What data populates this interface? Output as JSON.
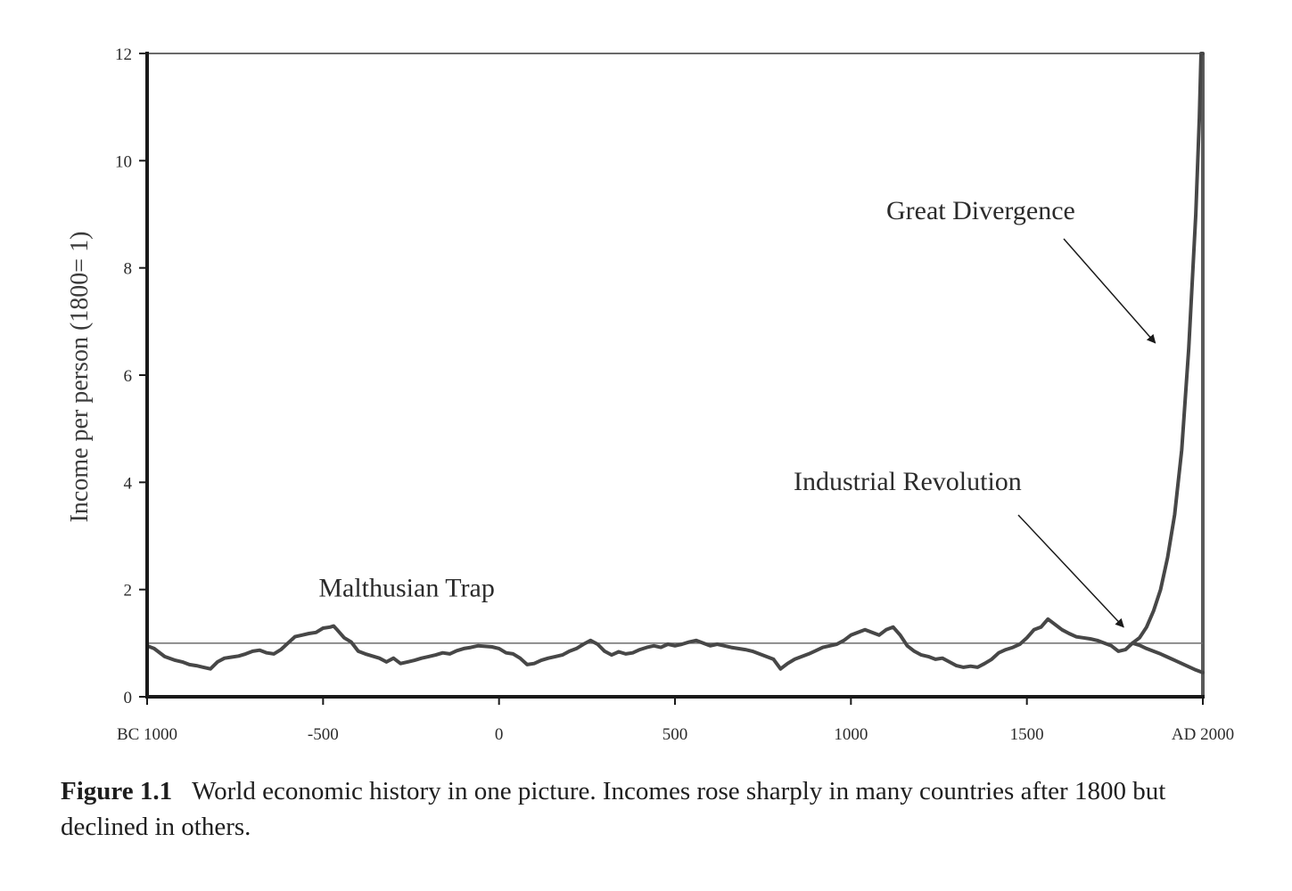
{
  "chart_data": {
    "type": "line",
    "title": "",
    "xlabel": "",
    "ylabel": "Income per person (1800= 1)",
    "xlim": [
      -1000,
      2000
    ],
    "ylim": [
      0,
      12
    ],
    "x_ticks": [
      {
        "value": -1000,
        "label": "BC 1000"
      },
      {
        "value": -500,
        "label": "-500"
      },
      {
        "value": 0,
        "label": "0"
      },
      {
        "value": 500,
        "label": "500"
      },
      {
        "value": 1000,
        "label": "1000"
      },
      {
        "value": 1500,
        "label": "1500"
      },
      {
        "value": 2000,
        "label": "AD 2000"
      }
    ],
    "y_ticks": [
      0,
      2,
      4,
      6,
      8,
      10,
      12
    ],
    "grid": false,
    "reference_line": {
      "y": 1
    },
    "series": [
      {
        "name": "",
        "x": [
          -1000,
          -980,
          -950,
          -920,
          -900,
          -880,
          -860,
          -840,
          -820,
          -800,
          -780,
          -760,
          -740,
          -720,
          -700,
          -680,
          -660,
          -640,
          -620,
          -600,
          -580,
          -560,
          -540,
          -520,
          -500,
          -480,
          -470,
          -460,
          -440,
          -420,
          -400,
          -380,
          -360,
          -340,
          -320,
          -300,
          -280,
          -260,
          -240,
          -220,
          -200,
          -180,
          -160,
          -140,
          -120,
          -100,
          -80,
          -60,
          -40,
          -20,
          0,
          20,
          40,
          60,
          80,
          100,
          120,
          140,
          160,
          180,
          200,
          220,
          240,
          260,
          280,
          300,
          320,
          340,
          360,
          380,
          400,
          420,
          440,
          460,
          480,
          500,
          520,
          540,
          560,
          580,
          600,
          620,
          640,
          660,
          680,
          700,
          720,
          740,
          760,
          780,
          800,
          820,
          840,
          860,
          880,
          900,
          920,
          940,
          960,
          980,
          1000,
          1020,
          1040,
          1060,
          1080,
          1100,
          1120,
          1140,
          1160,
          1180,
          1200,
          1220,
          1240,
          1260,
          1280,
          1300,
          1320,
          1340,
          1360,
          1380,
          1400,
          1420,
          1440,
          1460,
          1480,
          1500,
          1520,
          1540,
          1560,
          1580,
          1600,
          1620,
          1640,
          1660,
          1680,
          1700,
          1720,
          1740,
          1760,
          1780,
          1800
        ],
        "values": [
          0.95,
          0.9,
          0.75,
          0.68,
          0.65,
          0.6,
          0.58,
          0.55,
          0.52,
          0.65,
          0.72,
          0.74,
          0.76,
          0.8,
          0.85,
          0.87,
          0.82,
          0.8,
          0.88,
          1.0,
          1.12,
          1.15,
          1.18,
          1.2,
          1.28,
          1.3,
          1.32,
          1.25,
          1.1,
          1.02,
          0.85,
          0.8,
          0.76,
          0.72,
          0.65,
          0.72,
          0.62,
          0.65,
          0.68,
          0.72,
          0.75,
          0.78,
          0.82,
          0.8,
          0.86,
          0.9,
          0.92,
          0.95,
          0.94,
          0.93,
          0.9,
          0.82,
          0.8,
          0.72,
          0.6,
          0.62,
          0.68,
          0.72,
          0.75,
          0.78,
          0.85,
          0.9,
          0.98,
          1.05,
          0.98,
          0.85,
          0.78,
          0.84,
          0.8,
          0.82,
          0.88,
          0.92,
          0.95,
          0.92,
          0.98,
          0.95,
          0.98,
          1.02,
          1.05,
          1.0,
          0.95,
          0.98,
          0.95,
          0.92,
          0.9,
          0.88,
          0.85,
          0.8,
          0.75,
          0.7,
          0.52,
          0.62,
          0.7,
          0.75,
          0.8,
          0.86,
          0.92,
          0.95,
          0.98,
          1.05,
          1.15,
          1.2,
          1.25,
          1.2,
          1.15,
          1.25,
          1.3,
          1.15,
          0.95,
          0.85,
          0.78,
          0.75,
          0.7,
          0.72,
          0.65,
          0.58,
          0.55,
          0.57,
          0.55,
          0.62,
          0.7,
          0.82,
          0.88,
          0.92,
          0.98,
          1.1,
          1.25,
          1.3,
          1.45,
          1.35,
          1.25,
          1.18,
          1.12,
          1.1,
          1.08,
          1.05,
          1.0,
          0.95,
          0.85,
          0.88,
          1.0
        ]
      },
      {
        "name": "",
        "x": [
          1800,
          1820,
          1840,
          1860,
          1880,
          1900,
          1920,
          1940,
          1960,
          1980,
          1990,
          1995,
          2000
        ],
        "values": [
          1.0,
          1.1,
          1.3,
          1.6,
          2.0,
          2.6,
          3.4,
          4.6,
          6.5,
          9.0,
          10.8,
          12.0,
          12.0
        ]
      },
      {
        "name": "",
        "x": [
          1800,
          1820,
          1840,
          1860,
          1880,
          1900,
          1920,
          1940,
          1960,
          1980,
          2000
        ],
        "values": [
          1.0,
          0.96,
          0.9,
          0.85,
          0.8,
          0.74,
          0.68,
          0.62,
          0.56,
          0.5,
          0.45
        ]
      }
    ],
    "annotations": [
      {
        "text": "Malthusian Trap",
        "x": -500,
        "y": 2.0
      },
      {
        "text": "Industrial Revolution",
        "x": 1780,
        "y": 1.0
      },
      {
        "text": "Great Divergence",
        "x": 1880,
        "y": 6.5
      }
    ]
  },
  "caption": {
    "label": "Figure 1.1",
    "text": "World economic history in one picture. Incomes rose sharply in many countries after 1800 but declined in others."
  }
}
